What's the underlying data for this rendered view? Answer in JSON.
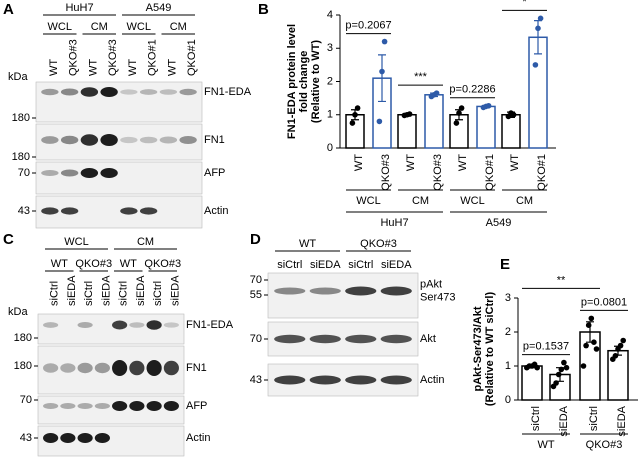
{
  "panels": {
    "A": {
      "label": "A",
      "cell_lines": [
        "HuH7",
        "A549"
      ],
      "fractions": [
        "WCL",
        "CM",
        "WCL",
        "CM"
      ],
      "lanes": [
        "WT",
        "QKO#3",
        "WT",
        "QKO#3",
        "WT",
        "QKO#1",
        "WT",
        "QKO#1"
      ],
      "unit": "kDa",
      "markers": [
        180,
        180,
        70,
        43
      ],
      "blots": [
        "FN1-EDA",
        "FN1",
        "AFP",
        "Actin"
      ]
    },
    "C": {
      "label": "C",
      "fractions": [
        "WCL",
        "CM"
      ],
      "genotypes": [
        "WT",
        "QKO#3",
        "WT",
        "QKO#3"
      ],
      "lanes": [
        "siCtrl",
        "siEDA",
        "siCtrl",
        "siEDA",
        "siCtrl",
        "siEDA",
        "siCtrl",
        "siEDA"
      ],
      "unit": "kDa",
      "markers": [
        180,
        180,
        70,
        43
      ],
      "blots": [
        "FN1-EDA",
        "FN1",
        "AFP",
        "Actin"
      ]
    },
    "D": {
      "label": "D",
      "genotypes": [
        "WT",
        "QKO#3"
      ],
      "lanes": [
        "siCtrl",
        "siEDA",
        "siCtrl",
        "siEDA"
      ],
      "markers": [
        70,
        55,
        70,
        43
      ],
      "blots": [
        [
          "pAkt",
          "Ser473"
        ],
        [
          "Akt"
        ],
        [
          "Actin"
        ]
      ]
    }
  },
  "chart_data": [
    {
      "type": "bar",
      "panel": "B",
      "ylabel": [
        "FN1-EDA protein level",
        "fold change",
        "(Relative to WT)"
      ],
      "categories": [
        "WT",
        "QKO#3",
        "WT",
        "QKO#3",
        "WT",
        "QKO#1",
        "WT",
        "QKO#1"
      ],
      "values": [
        1.0,
        2.1,
        1.0,
        1.6,
        1.0,
        1.25,
        1.0,
        3.33
      ],
      "errors": [
        0.15,
        0.7,
        0.02,
        0.05,
        0.15,
        0.02,
        0.08,
        0.5
      ],
      "points": [
        [
          0.75,
          1.0,
          1.2
        ],
        [
          0.8,
          2.3,
          3.2
        ],
        [
          0.98,
          1.0,
          1.02
        ],
        [
          1.55,
          1.6,
          1.65
        ],
        [
          0.75,
          1.05,
          1.2
        ],
        [
          1.22,
          1.25,
          1.27
        ],
        [
          0.95,
          1.05,
          1.0
        ],
        [
          2.5,
          3.6,
          3.9
        ]
      ],
      "bar_colors": [
        "#000000",
        "#2d5aa8",
        "#000000",
        "#2d5aa8",
        "#000000",
        "#2d5aa8",
        "#000000",
        "#2d5aa8"
      ],
      "fractions": [
        "WCL",
        "CM",
        "WCL",
        "CM"
      ],
      "groups": [
        "HuH7",
        "A549"
      ],
      "comparisons": [
        "p=0.2067",
        "***",
        "p=0.2286",
        "*"
      ],
      "ylim": [
        0,
        4
      ],
      "yticks": [
        0,
        1,
        2,
        3,
        4
      ]
    },
    {
      "type": "bar",
      "panel": "E",
      "ylabel": [
        "pAkt-Ser473/Akt",
        "(Relative to WT siCtrl)"
      ],
      "categories": [
        "siCtrl",
        "siEDA",
        "siCtrl",
        "siEDA"
      ],
      "values": [
        1.0,
        0.75,
        2.0,
        1.45
      ],
      "errors": [
        0.05,
        0.2,
        0.3,
        0.13
      ],
      "points": [
        [
          0.95,
          1.0,
          1.0,
          1.05,
          0.95
        ],
        [
          0.4,
          0.5,
          0.75,
          0.9,
          1.1,
          0.95
        ],
        [
          1.0,
          1.6,
          2.2,
          2.4,
          1.7,
          1.5
        ],
        [
          1.2,
          1.3,
          1.5,
          1.6,
          1.75
        ]
      ],
      "bar_colors": [
        "#000000",
        "#000000",
        "#000000",
        "#000000"
      ],
      "groups": [
        "WT",
        "QKO#3"
      ],
      "comparisons": [
        "p=0.1537",
        "**",
        "p=0.0801"
      ],
      "ylim": [
        0,
        3
      ],
      "yticks": [
        0,
        1,
        2,
        3
      ]
    }
  ]
}
